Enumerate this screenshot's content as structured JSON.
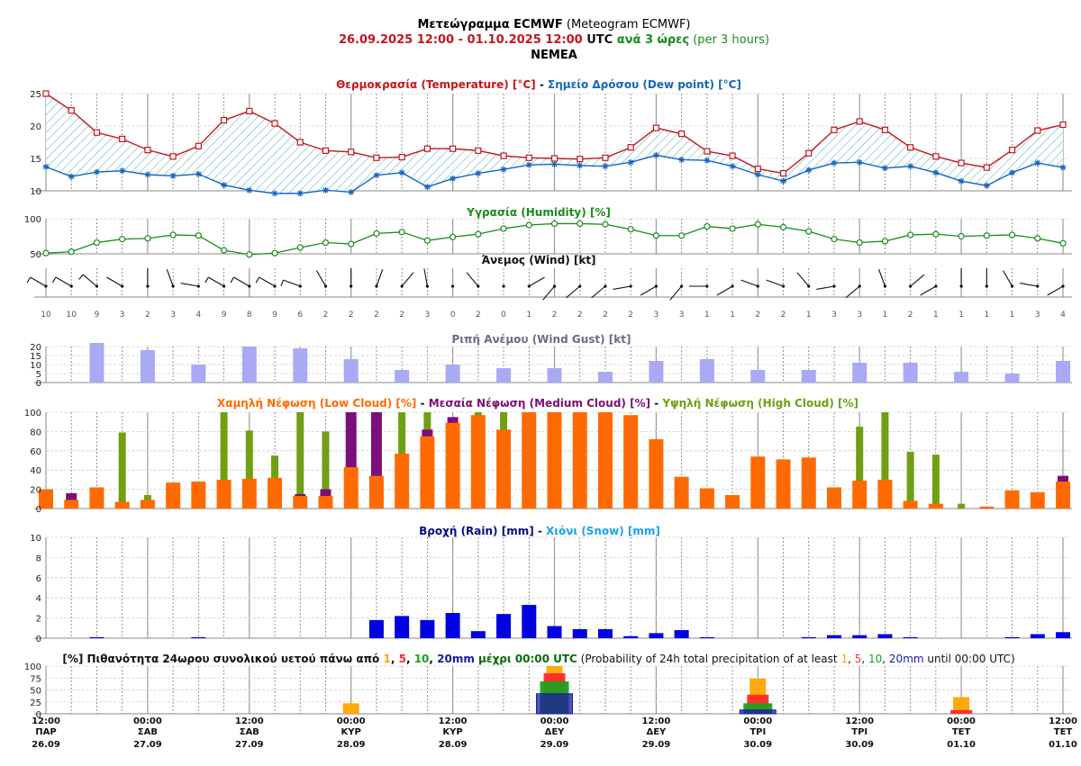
{
  "header": {
    "title_bold": "Μετεώγραμμα ECMWF",
    "title_rest": " (Meteogram ECMWF)",
    "period": "26.09.2025 12:00 - 01.10.2025 12:00",
    "utc": " UTC",
    "every_3h": " ανά 3 ώρες",
    "per_3h": " (per 3 hours)",
    "location": "NEMEA"
  },
  "colors": {
    "temperature": "#c4161c",
    "dewpoint": "#1565c0",
    "humidity": "#1a8a1a",
    "gust": "#a9a9f5",
    "low_cloud": "#ff6a00",
    "medium_cloud": "#7b0e78",
    "high_cloud": "#6fa012",
    "rain": "#0000e0",
    "snow": "#1aa3e8",
    "prob_1": "#ffa500",
    "prob_5": "#ff2a2a",
    "prob_10": "#1ea01e",
    "prob_20": "#1a1aa0"
  },
  "chart_data": [
    {
      "type": "line",
      "name": "temperature-panel",
      "title_parts": [
        "Θερμοκρασία (Temperature) [°C]",
        " - ",
        "Σημείο Δρόσου (Dew point) [°C]"
      ],
      "ylim": [
        10,
        25
      ],
      "yticks": [
        10,
        15,
        20,
        25
      ],
      "series": [
        {
          "name": "Temperature",
          "values": [
            25.0,
            22.4,
            19.0,
            18.0,
            16.3,
            15.3,
            16.9,
            20.9,
            22.3,
            20.4,
            17.5,
            16.2,
            16.0,
            15.1,
            15.2,
            16.5,
            16.5,
            16.2,
            15.4,
            15.1,
            15.0,
            14.9,
            15.1,
            16.7,
            19.7,
            18.8,
            16.1,
            15.4,
            13.4,
            12.7,
            15.8,
            19.4,
            20.7,
            19.4,
            16.7,
            15.3,
            14.3,
            13.6,
            16.3,
            19.3,
            20.2
          ]
        },
        {
          "name": "Dew point",
          "values": [
            13.7,
            12.2,
            12.9,
            13.1,
            12.5,
            12.3,
            12.6,
            10.9,
            10.1,
            9.6,
            9.6,
            10.1,
            9.8,
            12.4,
            12.8,
            10.6,
            11.9,
            12.7,
            13.3,
            14.0,
            14.1,
            13.9,
            13.8,
            14.4,
            15.5,
            14.8,
            14.7,
            13.8,
            12.5,
            11.5,
            13.2,
            14.3,
            14.4,
            13.5,
            13.8,
            12.8,
            11.5,
            10.8,
            12.8,
            14.3,
            13.6
          ]
        }
      ]
    },
    {
      "type": "line",
      "name": "humidity-panel",
      "title": "Υγρασία (Humidity) [%]",
      "ylim": [
        50,
        100
      ],
      "yticks": [
        50,
        100
      ],
      "series": [
        {
          "name": "Humidity",
          "values": [
            51,
            53,
            66,
            71,
            72,
            77,
            76,
            55,
            49,
            51,
            59,
            66,
            64,
            79,
            81,
            69,
            74,
            78,
            86,
            91,
            93,
            93,
            92,
            85,
            76,
            76,
            89,
            86,
            92,
            88,
            82,
            71,
            66,
            68,
            77,
            78,
            75,
            76,
            77,
            72,
            65
          ]
        }
      ]
    },
    {
      "type": "line",
      "name": "wind-panel",
      "title": "Άνεμος (Wind) [kt]",
      "speeds": [
        10,
        10,
        9,
        3,
        2,
        3,
        4,
        9,
        8,
        9,
        6,
        2,
        2,
        2,
        2,
        3,
        0,
        2,
        0,
        1,
        2,
        2,
        2,
        2,
        3,
        3,
        1,
        1,
        2,
        2,
        1,
        3,
        3,
        1,
        2,
        1,
        1,
        1,
        1,
        3,
        4
      ],
      "directions": [
        300,
        300,
        310,
        300,
        0,
        340,
        280,
        300,
        300,
        300,
        290,
        330,
        0,
        20,
        40,
        350,
        0,
        320,
        0,
        60,
        220,
        230,
        230,
        260,
        240,
        220,
        270,
        240,
        290,
        290,
        320,
        260,
        230,
        340,
        50,
        240,
        0,
        0,
        330,
        280,
        240
      ]
    },
    {
      "type": "bar",
      "name": "gust-panel",
      "title": "Ριπή Ανέμου (Wind Gust) [kt]",
      "ylim": [
        0,
        20
      ],
      "yticks": [
        0,
        5,
        10,
        15,
        20
      ],
      "x_index": [
        2,
        4,
        6,
        8,
        10,
        12,
        14,
        16,
        18,
        20,
        22,
        24,
        26,
        28,
        30,
        32,
        34,
        36,
        38,
        40
      ],
      "values": [
        22,
        18,
        10,
        20,
        19,
        13,
        7,
        10,
        8,
        8,
        6,
        12,
        13,
        7,
        7,
        11,
        11,
        6,
        5,
        12
      ]
    },
    {
      "type": "bar",
      "name": "cloud-panel",
      "title_parts": [
        "Χαμηλή Νέφωση (Low Cloud) [%]",
        " - ",
        "Μεσαία Νέφωση (Medium Cloud) [%]",
        " - ",
        "Υψηλή Νέφωση (High Cloud) [%]"
      ],
      "ylim": [
        0,
        100
      ],
      "yticks": [
        0,
        20,
        40,
        60,
        80,
        100
      ],
      "series": [
        {
          "name": "Low Cloud",
          "values": [
            20,
            9,
            22,
            7,
            9,
            27,
            28,
            30,
            31,
            32,
            13,
            13,
            43,
            34,
            57,
            75,
            89,
            97,
            82,
            100,
            100,
            100,
            100,
            97,
            72,
            33,
            21,
            14,
            54,
            51,
            53,
            22,
            29,
            30,
            8,
            5,
            0,
            2,
            19,
            17,
            28
          ]
        },
        {
          "name": "Medium Cloud",
          "values": [
            0,
            16,
            0,
            0,
            0,
            0,
            0,
            0,
            0,
            0,
            15,
            20,
            100,
            100,
            0,
            82,
            95,
            0,
            0,
            0,
            0,
            0,
            0,
            0,
            0,
            0,
            0,
            0,
            0,
            0,
            0,
            0,
            0,
            0,
            0,
            0,
            0,
            0,
            0,
            0,
            34
          ]
        },
        {
          "name": "High Cloud",
          "values": [
            0,
            0,
            0,
            79,
            14,
            0,
            0,
            100,
            81,
            55,
            100,
            80,
            0,
            0,
            100,
            100,
            0,
            100,
            100,
            0,
            0,
            0,
            0,
            0,
            0,
            0,
            0,
            0,
            0,
            0,
            0,
            0,
            85,
            100,
            59,
            56,
            5,
            0,
            0,
            0,
            0
          ]
        }
      ]
    },
    {
      "type": "bar",
      "name": "rain-panel",
      "title_parts": [
        "Βροχή (Rain) [mm]",
        " - ",
        "Χιόνι (Snow) [mm]"
      ],
      "ylim": [
        0,
        10
      ],
      "yticks": [
        0,
        2,
        4,
        6,
        8,
        10
      ],
      "series": [
        {
          "name": "Rain",
          "values": [
            0,
            0,
            0.1,
            0,
            0,
            0,
            0.1,
            0,
            0,
            0,
            0,
            0,
            0,
            1.8,
            2.2,
            1.8,
            2.5,
            0.7,
            2.4,
            3.3,
            1.2,
            0.9,
            0.9,
            0.2,
            0.5,
            0.8,
            0.1,
            0,
            0,
            0,
            0.1,
            0.3,
            0.3,
            0.4,
            0.1,
            0,
            0,
            0,
            0.1,
            0.4,
            0.6
          ]
        },
        {
          "name": "Snow",
          "values": [
            0,
            0,
            0,
            0,
            0,
            0,
            0,
            0,
            0,
            0,
            0,
            0,
            0,
            0,
            0,
            0,
            0,
            0,
            0,
            0,
            0,
            0,
            0,
            0,
            0,
            0,
            0,
            0,
            0,
            0,
            0,
            0,
            0,
            0,
            0,
            0,
            0,
            0,
            0,
            0,
            0
          ]
        }
      ]
    },
    {
      "type": "bar",
      "name": "probability-panel",
      "title_parts": [
        "[%] Πιθανότητα 24ωρου συνολικού υετού πάνω από ",
        "1",
        ", ",
        "5",
        ", ",
        "10",
        ", ",
        "20mm",
        " μέχρι 00:00 UTC",
        " (Probability of 24h total precipitation of at least ",
        "1",
        ", ",
        "5",
        ", ",
        "10",
        ", ",
        "20mm",
        " until 00:00 UTC)"
      ],
      "ylim": [
        0,
        100
      ],
      "yticks": [
        0,
        25,
        50,
        75,
        100
      ],
      "x_index": [
        4,
        12,
        20,
        28,
        36
      ],
      "series": [
        {
          "name": "1mm",
          "values": [
            0,
            22,
            100,
            74,
            35
          ]
        },
        {
          "name": "5mm",
          "values": [
            0,
            0,
            85,
            40,
            8
          ]
        },
        {
          "name": "10mm",
          "values": [
            0,
            0,
            68,
            22,
            0
          ]
        },
        {
          "name": "20mm",
          "values": [
            0,
            0,
            42,
            8,
            0
          ]
        }
      ]
    }
  ],
  "x_axis": {
    "points": 41,
    "labels": [
      {
        "index": 0,
        "time": "12:00",
        "day": "ΠΑΡ",
        "date": "26.09"
      },
      {
        "index": 4,
        "time": "00:00",
        "day": "ΣΑΒ",
        "date": "27.09"
      },
      {
        "index": 8,
        "time": "12:00",
        "day": "ΣΑΒ",
        "date": "27.09"
      },
      {
        "index": 12,
        "time": "00:00",
        "day": "ΚΥΡ",
        "date": "28.09"
      },
      {
        "index": 16,
        "time": "12:00",
        "day": "ΚΥΡ",
        "date": "28.09"
      },
      {
        "index": 20,
        "time": "00:00",
        "day": "ΔΕΥ",
        "date": "29.09"
      },
      {
        "index": 24,
        "time": "12:00",
        "day": "ΔΕΥ",
        "date": "29.09"
      },
      {
        "index": 28,
        "time": "00:00",
        "day": "ΤΡΙ",
        "date": "30.09"
      },
      {
        "index": 32,
        "time": "12:00",
        "day": "ΤΡΙ",
        "date": "30.09"
      },
      {
        "index": 36,
        "time": "00:00",
        "day": "ΤΕΤ",
        "date": "01.10"
      },
      {
        "index": 40,
        "time": "12:00",
        "day": "ΤΕΤ",
        "date": "01.10"
      }
    ]
  }
}
